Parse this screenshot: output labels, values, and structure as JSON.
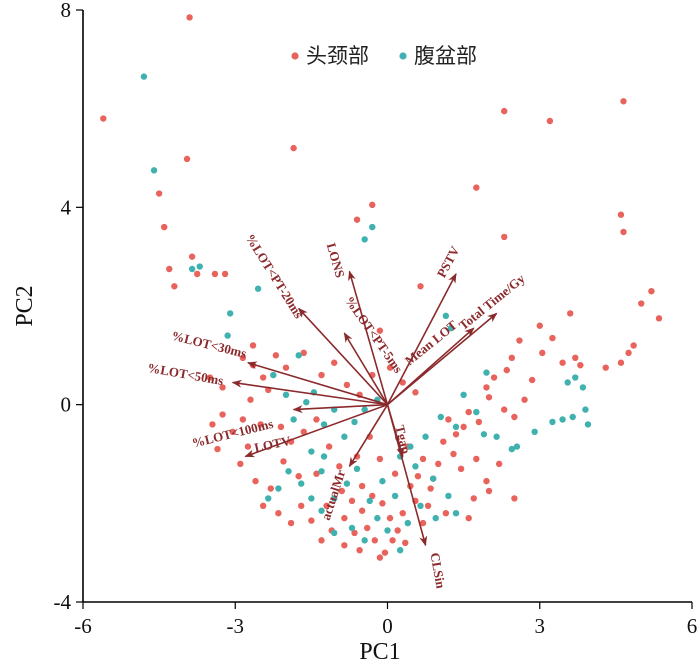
{
  "chart_data": {
    "type": "scatter",
    "title": "",
    "xlabel": "PC1",
    "ylabel": "PC2",
    "xlim": [
      -6,
      6
    ],
    "ylim": [
      -4,
      8
    ],
    "xticks": [
      {
        "value": -6,
        "label": "-6"
      },
      {
        "value": -3,
        "label": "-3"
      },
      {
        "value": 0,
        "label": "0"
      },
      {
        "value": 3,
        "label": "3"
      },
      {
        "value": 6,
        "label": "6"
      }
    ],
    "yticks": [
      {
        "value": -4,
        "label": "-4"
      },
      {
        "value": 0,
        "label": "0"
      },
      {
        "value": 4,
        "label": "4"
      },
      {
        "value": 8,
        "label": "8"
      }
    ],
    "legend": {
      "position": "top"
    },
    "colors": {
      "head_neck": "#e8635c",
      "abdomen_pelvis": "#3fb2b0",
      "loading": "#8b2a2c"
    },
    "series": [
      {
        "name": "头颈部",
        "color": "#e8635c",
        "points": [
          [
            -3.9,
            7.85
          ],
          [
            -5.6,
            5.8
          ],
          [
            -3.95,
            4.98
          ],
          [
            -4.5,
            4.28
          ],
          [
            -4.4,
            3.6
          ],
          [
            -4.3,
            2.75
          ],
          [
            -4.2,
            2.4
          ],
          [
            -3.85,
            3.0
          ],
          [
            -3.75,
            2.65
          ],
          [
            -3.4,
            2.65
          ],
          [
            -3.2,
            2.65
          ],
          [
            -1.85,
            5.2
          ],
          [
            -0.3,
            4.05
          ],
          [
            -0.6,
            3.75
          ],
          [
            0.65,
            2.4
          ],
          [
            1.75,
            4.4
          ],
          [
            2.3,
            3.4
          ],
          [
            2.3,
            5.95
          ],
          [
            3.2,
            5.75
          ],
          [
            4.65,
            6.15
          ],
          [
            4.6,
            3.85
          ],
          [
            4.65,
            3.5
          ],
          [
            5.0,
            2.05
          ],
          [
            5.2,
            2.3
          ],
          [
            5.35,
            1.75
          ],
          [
            4.85,
            1.2
          ],
          [
            4.75,
            1.05
          ],
          [
            4.6,
            0.85
          ],
          [
            4.3,
            0.75
          ],
          [
            3.8,
            0.8
          ],
          [
            3.7,
            0.95
          ],
          [
            3.6,
            1.85
          ],
          [
            3.45,
            0.85
          ],
          [
            3.25,
            1.35
          ],
          [
            3.05,
            1.05
          ],
          [
            3.0,
            1.6
          ],
          [
            2.85,
            0.5
          ],
          [
            2.6,
            1.3
          ],
          [
            2.45,
            0.95
          ],
          [
            2.35,
            0.7
          ],
          [
            2.1,
            0.55
          ],
          [
            1.95,
            0.35
          ],
          [
            2.7,
            0.1
          ],
          [
            2.5,
            -0.25
          ],
          [
            2.3,
            -0.1
          ],
          [
            2.0,
            0.15
          ],
          [
            1.8,
            -0.35
          ],
          [
            1.6,
            -0.15
          ],
          [
            1.5,
            -0.45
          ],
          [
            1.35,
            -0.6
          ],
          [
            1.2,
            -0.3
          ],
          [
            1.1,
            -0.75
          ],
          [
            1.3,
            -1.0
          ],
          [
            1.0,
            -1.2
          ],
          [
            1.45,
            -1.3
          ],
          [
            1.75,
            -1.1
          ],
          [
            1.95,
            -1.55
          ],
          [
            2.2,
            -1.2
          ],
          [
            2.0,
            -1.75
          ],
          [
            1.7,
            -1.9
          ],
          [
            0.9,
            -1.5
          ],
          [
            0.7,
            -1.1
          ],
          [
            0.4,
            -0.85
          ],
          [
            0.6,
            -1.45
          ],
          [
            0.55,
            -1.95
          ],
          [
            0.3,
            -2.2
          ],
          [
            0.7,
            -2.4
          ],
          [
            0.2,
            -2.55
          ],
          [
            0.35,
            -2.8
          ],
          [
            0.05,
            -2.3
          ],
          [
            -0.1,
            -2.0
          ],
          [
            -0.3,
            -1.85
          ],
          [
            -0.5,
            -2.15
          ],
          [
            -0.7,
            -1.95
          ],
          [
            -0.85,
            -2.3
          ],
          [
            -0.65,
            -2.6
          ],
          [
            -0.4,
            -2.5
          ],
          [
            -0.25,
            -2.75
          ],
          [
            -0.55,
            -2.95
          ],
          [
            -0.85,
            -2.85
          ],
          [
            -1.1,
            -2.55
          ],
          [
            -1.3,
            -2.75
          ],
          [
            -1.5,
            -2.35
          ],
          [
            -1.7,
            -2.05
          ],
          [
            -1.9,
            -2.4
          ],
          [
            -2.15,
            -2.2
          ],
          [
            -2.45,
            -2.05
          ],
          [
            -2.3,
            -1.7
          ],
          [
            -2.6,
            -1.55
          ],
          [
            -2.9,
            -1.2
          ],
          [
            -2.75,
            -0.85
          ],
          [
            -3.05,
            -0.55
          ],
          [
            -2.85,
            -0.3
          ],
          [
            -3.25,
            -0.2
          ],
          [
            -2.7,
            0.1
          ],
          [
            -2.45,
            0.55
          ],
          [
            -2.65,
            0.8
          ],
          [
            -2.85,
            0.95
          ],
          [
            -2.65,
            1.2
          ],
          [
            -2.2,
            1.0
          ],
          [
            -2.0,
            0.75
          ],
          [
            -1.65,
            1.05
          ],
          [
            -1.3,
            0.6
          ],
          [
            -1.05,
            0.85
          ],
          [
            -0.8,
            0.4
          ],
          [
            -0.55,
            0.2
          ],
          [
            -0.3,
            0.6
          ],
          [
            -0.15,
            1.5
          ],
          [
            0.05,
            0.75
          ],
          [
            0.3,
            0.45
          ],
          [
            0.55,
            0.25
          ],
          [
            -1.4,
            -0.3
          ],
          [
            -1.65,
            -0.55
          ],
          [
            -1.9,
            -0.75
          ],
          [
            -2.1,
            -0.45
          ],
          [
            -1.15,
            -0.85
          ],
          [
            -0.95,
            -1.25
          ],
          [
            -0.6,
            -1.05
          ],
          [
            -0.35,
            -0.65
          ],
          [
            -0.15,
            -1.1
          ],
          [
            0.15,
            -1.4
          ],
          [
            0.45,
            -1.65
          ],
          [
            -1.4,
            -1.4
          ],
          [
            -1.75,
            -1.45
          ],
          [
            -2.05,
            -1.15
          ],
          [
            -0.5,
            -1.65
          ],
          [
            -0.9,
            -1.75
          ],
          [
            -1.2,
            -2.05
          ],
          [
            0.1,
            -2.75
          ],
          [
            -0.15,
            -3.1
          ],
          [
            -0.05,
            -3.0
          ],
          [
            0.8,
            -2.05
          ],
          [
            1.15,
            -2.2
          ],
          [
            0.85,
            -1.7
          ],
          [
            1.6,
            -2.3
          ],
          [
            2.5,
            -1.9
          ],
          [
            -3.35,
            -0.9
          ],
          [
            -3.45,
            -0.4
          ],
          [
            -3.5,
            0.55
          ],
          [
            -3.25,
            0.35
          ],
          [
            -2.5,
            -0.4
          ],
          [
            -2.35,
            0.3
          ]
        ]
      },
      {
        "name": "腹盆部",
        "color": "#3fb2b0",
        "points": [
          [
            -4.8,
            6.65
          ],
          [
            -4.6,
            4.75
          ],
          [
            -3.85,
            2.75
          ],
          [
            -3.7,
            2.8
          ],
          [
            -2.55,
            2.35
          ],
          [
            -3.1,
            1.85
          ],
          [
            -3.15,
            1.4
          ],
          [
            -1.75,
            1.0
          ],
          [
            -2.25,
            0.6
          ],
          [
            -2.0,
            0.2
          ],
          [
            -1.85,
            -0.3
          ],
          [
            -1.6,
            0.05
          ],
          [
            -1.45,
            0.25
          ],
          [
            -1.25,
            -0.4
          ],
          [
            -1.05,
            -0.1
          ],
          [
            -0.85,
            -0.65
          ],
          [
            -0.65,
            -0.35
          ],
          [
            -0.45,
            -0.1
          ],
          [
            -0.2,
            0.1
          ],
          [
            -0.45,
            3.35
          ],
          [
            -0.3,
            3.6
          ],
          [
            1.15,
            1.8
          ],
          [
            1.25,
            1.55
          ],
          [
            1.95,
            0.65
          ],
          [
            1.5,
            0.2
          ],
          [
            1.75,
            -0.15
          ],
          [
            2.15,
            -0.65
          ],
          [
            2.55,
            -0.85
          ],
          [
            2.9,
            -0.55
          ],
          [
            3.25,
            -0.35
          ],
          [
            3.55,
            0.45
          ],
          [
            3.7,
            0.55
          ],
          [
            3.85,
            0.35
          ],
          [
            3.9,
            -0.1
          ],
          [
            3.95,
            -0.4
          ],
          [
            3.65,
            -0.25
          ],
          [
            3.45,
            -0.3
          ],
          [
            2.45,
            -0.9
          ],
          [
            1.9,
            -0.6
          ],
          [
            1.35,
            -0.45
          ],
          [
            1.05,
            -0.25
          ],
          [
            0.75,
            -0.65
          ],
          [
            0.45,
            -0.85
          ],
          [
            0.25,
            -1.05
          ],
          [
            0.55,
            -1.25
          ],
          [
            0.9,
            -1.5
          ],
          [
            1.2,
            -1.85
          ],
          [
            1.35,
            -2.2
          ],
          [
            0.95,
            -2.3
          ],
          [
            0.65,
            -2.05
          ],
          [
            0.4,
            -2.4
          ],
          [
            0.15,
            -1.85
          ],
          [
            -0.1,
            -1.55
          ],
          [
            -0.35,
            -1.95
          ],
          [
            -0.6,
            -1.3
          ],
          [
            -0.8,
            -1.6
          ],
          [
            -1.05,
            -1.9
          ],
          [
            -1.3,
            -2.15
          ],
          [
            -1.5,
            -1.9
          ],
          [
            -1.7,
            -1.6
          ],
          [
            -1.95,
            -1.35
          ],
          [
            -2.15,
            -1.7
          ],
          [
            -2.35,
            -1.9
          ],
          [
            -0.7,
            -2.5
          ],
          [
            -0.45,
            -2.75
          ],
          [
            -0.2,
            -2.3
          ],
          [
            0.0,
            -2.55
          ],
          [
            0.25,
            -2.95
          ],
          [
            -1.05,
            -2.6
          ],
          [
            -1.3,
            -1.35
          ],
          [
            -1.5,
            -0.95
          ],
          [
            -1.25,
            -1.05
          ]
        ]
      }
    ],
    "loadings": [
      {
        "label": "%LOT<PT-20ms",
        "x": -1.75,
        "y": 1.95
      },
      {
        "label": "LONS",
        "x": -0.75,
        "y": 2.7
      },
      {
        "label": "%LOT<PT-5ms",
        "x": -0.85,
        "y": 1.45
      },
      {
        "label": "PSTV",
        "x": 1.35,
        "y": 2.65
      },
      {
        "label": "Total Time/Gy",
        "x": 2.15,
        "y": 1.85
      },
      {
        "label": "Mean LOT",
        "x": 1.7,
        "y": 1.55
      },
      {
        "label": "%LOT<30ms",
        "x": -2.75,
        "y": 0.85
      },
      {
        "label": "%LOT<50ms",
        "x": -3.05,
        "y": 0.45
      },
      {
        "label": "LOTV",
        "x": -2.8,
        "y": -1.05
      },
      {
        "label": "%LOT<100ms",
        "x": -1.85,
        "y": -0.1
      },
      {
        "label": "actualMr",
        "x": -0.75,
        "y": -1.25
      },
      {
        "label": "Tgap",
        "x": 0.3,
        "y": -1.05
      },
      {
        "label": "CLSin",
        "x": 0.75,
        "y": -2.85
      }
    ]
  }
}
